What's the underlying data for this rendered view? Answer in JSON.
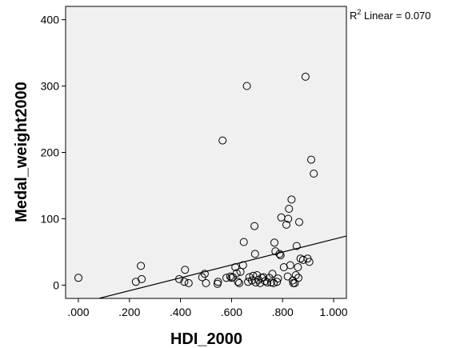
{
  "chart_data": {
    "type": "scatter",
    "xlabel": "HDI_2000",
    "ylabel": "Medal_weight2000",
    "xlim": [
      -0.05,
      1.05
    ],
    "ylim": [
      -20,
      420
    ],
    "x_ticks": [
      0,
      0.2,
      0.4,
      0.6,
      0.8,
      1.0
    ],
    "x_tick_labels": [
      ".000",
      ".200",
      ".400",
      ".600",
      ".800",
      "1.000"
    ],
    "y_ticks": [
      0,
      100,
      200,
      300,
      400
    ],
    "y_tick_labels": [
      "0",
      "100",
      "200",
      "300",
      "400"
    ],
    "grid": false,
    "background": "#ffffff",
    "plot_background": "#f0f0f0",
    "marker": "open-circle",
    "fit_line": {
      "label_prefix": "R",
      "label_sup": "2",
      "label_text": " Linear = 0.070",
      "points": [
        [
          0.06,
          -22
        ],
        [
          1.05,
          74
        ]
      ]
    },
    "points": [
      [
        0.0,
        11
      ],
      [
        0.225,
        5
      ],
      [
        0.245,
        29
      ],
      [
        0.248,
        9
      ],
      [
        0.395,
        9
      ],
      [
        0.415,
        5
      ],
      [
        0.418,
        23
      ],
      [
        0.432,
        3
      ],
      [
        0.485,
        12
      ],
      [
        0.495,
        17
      ],
      [
        0.5,
        3
      ],
      [
        0.545,
        2
      ],
      [
        0.547,
        5
      ],
      [
        0.565,
        218
      ],
      [
        0.58,
        11
      ],
      [
        0.595,
        13
      ],
      [
        0.6,
        11
      ],
      [
        0.605,
        12
      ],
      [
        0.615,
        27
      ],
      [
        0.62,
        18
      ],
      [
        0.625,
        5
      ],
      [
        0.63,
        3
      ],
      [
        0.635,
        20
      ],
      [
        0.645,
        30
      ],
      [
        0.648,
        65
      ],
      [
        0.66,
        300
      ],
      [
        0.665,
        5
      ],
      [
        0.67,
        12
      ],
      [
        0.68,
        7
      ],
      [
        0.685,
        14
      ],
      [
        0.69,
        89
      ],
      [
        0.692,
        47
      ],
      [
        0.695,
        4
      ],
      [
        0.7,
        15
      ],
      [
        0.705,
        8
      ],
      [
        0.712,
        3
      ],
      [
        0.718,
        11
      ],
      [
        0.725,
        12
      ],
      [
        0.732,
        6
      ],
      [
        0.74,
        4
      ],
      [
        0.748,
        11
      ],
      [
        0.755,
        4
      ],
      [
        0.76,
        17
      ],
      [
        0.765,
        3
      ],
      [
        0.768,
        64
      ],
      [
        0.772,
        51
      ],
      [
        0.778,
        5
      ],
      [
        0.782,
        10
      ],
      [
        0.788,
        47
      ],
      [
        0.792,
        45
      ],
      [
        0.795,
        102
      ],
      [
        0.805,
        27
      ],
      [
        0.815,
        91
      ],
      [
        0.82,
        13
      ],
      [
        0.822,
        100
      ],
      [
        0.825,
        115
      ],
      [
        0.83,
        30
      ],
      [
        0.835,
        129
      ],
      [
        0.84,
        7
      ],
      [
        0.842,
        3
      ],
      [
        0.848,
        3
      ],
      [
        0.852,
        15
      ],
      [
        0.855,
        59
      ],
      [
        0.86,
        27
      ],
      [
        0.862,
        11
      ],
      [
        0.865,
        95
      ],
      [
        0.87,
        40
      ],
      [
        0.88,
        38
      ],
      [
        0.89,
        314
      ],
      [
        0.898,
        40
      ],
      [
        0.905,
        35
      ],
      [
        0.912,
        189
      ],
      [
        0.922,
        168
      ]
    ]
  }
}
